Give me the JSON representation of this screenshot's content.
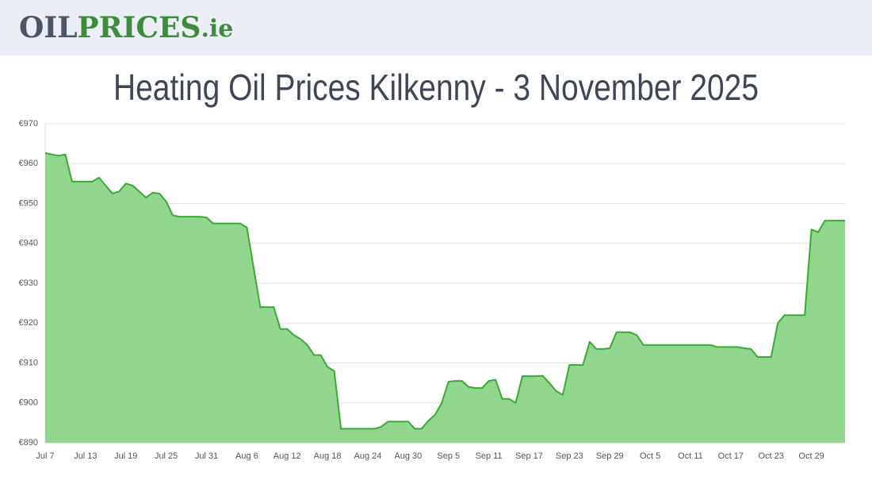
{
  "header": {
    "logo_oil": "OIL",
    "logo_prices": "PRICES",
    "logo_ie": ".ie"
  },
  "chart_data": {
    "type": "area",
    "title": "Heating Oil Prices Kilkenny - 3 November 2025",
    "color": "#3aaa35",
    "fill": "#90d68d",
    "grid": true,
    "ylim": [
      890,
      970
    ],
    "yticks": [
      {
        "value": 890,
        "label": "€890"
      },
      {
        "value": 900,
        "label": "€900"
      },
      {
        "value": 910,
        "label": "€910"
      },
      {
        "value": 920,
        "label": "€920"
      },
      {
        "value": 930,
        "label": "€930"
      },
      {
        "value": 940,
        "label": "€940"
      },
      {
        "value": 950,
        "label": "€950"
      },
      {
        "value": 960,
        "label": "€960"
      },
      {
        "value": 970,
        "label": "€970"
      }
    ],
    "categories": [
      "Jul 7",
      null,
      null,
      null,
      null,
      null,
      "Jul 13",
      null,
      null,
      null,
      null,
      null,
      "Jul 19",
      null,
      null,
      null,
      null,
      null,
      "Jul 25",
      null,
      null,
      null,
      null,
      null,
      "Jul 31",
      null,
      null,
      null,
      null,
      null,
      "Aug 6",
      null,
      null,
      null,
      null,
      null,
      "Aug 12",
      null,
      null,
      null,
      null,
      null,
      "Aug 18",
      null,
      null,
      null,
      null,
      null,
      "Aug 24",
      null,
      null,
      null,
      null,
      null,
      "Aug 30",
      null,
      null,
      null,
      null,
      null,
      "Sep 5",
      null,
      null,
      null,
      null,
      null,
      "Sep 11",
      null,
      null,
      null,
      null,
      null,
      "Sep 17",
      null,
      null,
      null,
      null,
      null,
      "Sep 23",
      null,
      null,
      null,
      null,
      null,
      "Sep 29",
      null,
      null,
      null,
      null,
      null,
      "Oct 5",
      null,
      null,
      null,
      null,
      null,
      "Oct 11",
      null,
      null,
      null,
      null,
      null,
      "Oct 17",
      null,
      null,
      null,
      null,
      null,
      "Oct 23",
      null,
      null,
      null,
      null,
      null,
      "Oct 29",
      null,
      null,
      null,
      null,
      null
    ],
    "values": [
      962.7,
      962.3,
      962,
      962.3,
      955.5,
      955.5,
      955.5,
      955.5,
      956.5,
      954.5,
      952.5,
      953,
      955,
      954.5,
      953,
      951.5,
      952.7,
      952.5,
      950.5,
      947,
      946.7,
      946.7,
      946.7,
      946.7,
      946.5,
      945,
      945,
      945,
      945,
      945,
      944,
      934,
      924,
      924,
      924,
      918.5,
      918.5,
      917,
      916,
      914.5,
      912,
      912,
      909,
      908,
      893.5,
      893.5,
      893.5,
      893.5,
      893.5,
      893.5,
      894,
      895.3,
      895.3,
      895.3,
      895.3,
      893.5,
      893.5,
      895.5,
      897,
      900,
      905.3,
      905.5,
      905.5,
      904,
      903.7,
      903.7,
      905.5,
      905.8,
      901,
      901,
      900,
      906.7,
      906.7,
      906.7,
      906.8,
      905,
      903,
      902,
      909.5,
      909.5,
      909.5,
      915.3,
      913.5,
      913.5,
      913.7,
      917.7,
      917.7,
      917.7,
      917,
      914.5,
      914.5,
      914.5,
      914.5,
      914.5,
      914.5,
      914.5,
      914.5,
      914.5,
      914.5,
      914.5,
      914,
      914,
      914,
      914,
      913.7,
      913.5,
      911.5,
      911.5,
      911.5,
      920,
      922,
      922,
      922,
      922,
      943.5,
      942.8,
      945.7,
      945.7,
      945.7,
      945.7
    ]
  }
}
